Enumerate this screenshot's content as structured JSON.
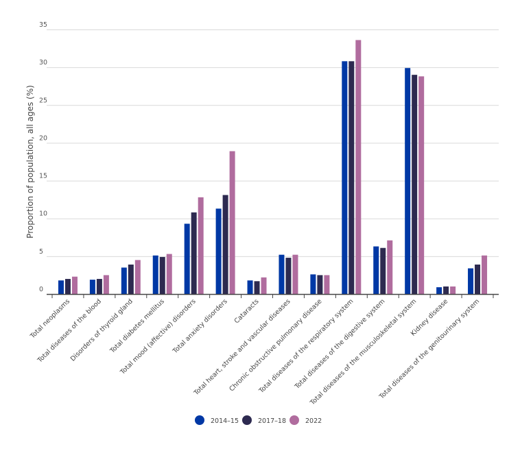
{
  "chart_data": {
    "type": "bar",
    "title": "",
    "xlabel": "",
    "ylabel": "Proportion of population, all ages (%)",
    "ylim": [
      0,
      35
    ],
    "yticks": [
      0,
      5,
      10,
      15,
      20,
      25,
      30,
      35
    ],
    "grid": true,
    "legend_position": "bottom-center",
    "categories": [
      "Total neoplasms",
      "Total diseases of the blood",
      "Disorders of thyroid gland",
      "Total diabetes mellitus",
      "Total mood (affective) disorders",
      "Total anxiety disorders",
      "Cataracts",
      "Total heart, stroke and vascular diseases",
      "Chronic obstructive pulmonary disease",
      "Total diseases of the respiratory system",
      "Total diseases of the digestive system",
      "Total diseases of the musculoskeletal system",
      "Kidney disease",
      "Total diseases of the genitourinary system"
    ],
    "series": [
      {
        "name": "2014–15",
        "color": "#0038a5",
        "values": [
          1.8,
          1.9,
          3.5,
          5.1,
          9.3,
          11.3,
          1.8,
          5.2,
          2.6,
          30.8,
          6.3,
          29.9,
          0.9,
          3.4
        ]
      },
      {
        "name": "2017–18",
        "color": "#2d2a50",
        "values": [
          2.0,
          2.0,
          3.9,
          4.9,
          10.8,
          13.1,
          1.7,
          4.8,
          2.5,
          30.8,
          6.1,
          29.0,
          1.0,
          3.9
        ]
      },
      {
        "name": "2022",
        "color": "#b06c9e",
        "values": [
          2.3,
          2.5,
          4.5,
          5.3,
          12.8,
          18.9,
          2.2,
          5.2,
          2.5,
          33.6,
          7.1,
          28.8,
          1.0,
          5.1
        ]
      }
    ]
  }
}
